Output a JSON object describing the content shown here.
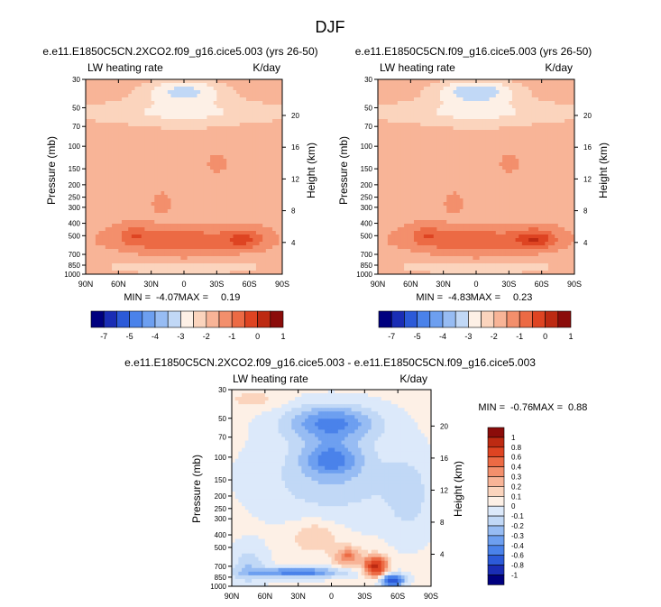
{
  "figure_title": "DJF",
  "colors": {
    "main_levels": [
      "#00007f",
      "#1a2db5",
      "#2c5ad8",
      "#4a82ea",
      "#6d9ff0",
      "#97bcf3",
      "#c1d8f6",
      "#fdf0e6",
      "#fbd4bd",
      "#f8b497",
      "#f38f6c",
      "#ec6a44",
      "#de4422",
      "#bd2a12",
      "#8b0c0a"
    ],
    "diff_levels": [
      "#00007f",
      "#1a2db5",
      "#2c5ad8",
      "#4a82ea",
      "#6d9ff0",
      "#97bcf3",
      "#c1d8f6",
      "#dce9fa",
      "#fdf0e6",
      "#fbd4bd",
      "#f8b497",
      "#f38f6c",
      "#ec6a44",
      "#de4422",
      "#bd2a12",
      "#8b0c0a"
    ]
  },
  "chart_data": [
    {
      "type": "heatmap",
      "title": "e.e11.E1850C5CN.2XCO2.f09_g16.cice5.003 (yrs 26-50)",
      "left_label": "LW heating rate",
      "right_label": "K/day",
      "ylabel": "Pressure (mb)",
      "ylabel_right": "Height (km)",
      "x_ticks": [
        "90N",
        "60N",
        "30N",
        "0",
        "30S",
        "60S",
        "90S"
      ],
      "x_values": [
        90,
        60,
        30,
        0,
        -30,
        -60,
        -90
      ],
      "y_ticks": [
        "30",
        "50",
        "70",
        "100",
        "150",
        "200",
        "250",
        "300",
        "400",
        "500",
        "700",
        "850",
        "1000"
      ],
      "y_values": [
        30,
        50,
        70,
        100,
        150,
        200,
        250,
        300,
        400,
        500,
        700,
        850,
        1000
      ],
      "height_ticks": [
        "20",
        "16",
        "12",
        "8",
        "4"
      ],
      "height_values": [
        20,
        16,
        12,
        8,
        4
      ],
      "min_label": "MIN =",
      "min_value": "-4.07",
      "max_label": "MAX =",
      "max_value": "0.19",
      "variant": 0
    },
    {
      "type": "heatmap",
      "title": "e.e11.E1850C5CN.f09_g16.cice5.003 (yrs 26-50)",
      "left_label": "LW heating rate",
      "right_label": "K/day",
      "ylabel": "Pressure (mb)",
      "ylabel_right": "Height (km)",
      "x_ticks": [
        "90N",
        "60N",
        "30N",
        "0",
        "30S",
        "60S",
        "90S"
      ],
      "x_values": [
        90,
        60,
        30,
        0,
        -30,
        -60,
        -90
      ],
      "y_ticks": [
        "30",
        "50",
        "70",
        "100",
        "150",
        "200",
        "250",
        "300",
        "400",
        "500",
        "700",
        "850",
        "1000"
      ],
      "y_values": [
        30,
        50,
        70,
        100,
        150,
        200,
        250,
        300,
        400,
        500,
        700,
        850,
        1000
      ],
      "height_ticks": [
        "20",
        "16",
        "12",
        "8",
        "4"
      ],
      "height_values": [
        20,
        16,
        12,
        8,
        4
      ],
      "min_label": "MIN =",
      "min_value": "-4.83",
      "max_label": "MAX =",
      "max_value": "0.23",
      "variant": 1
    },
    {
      "type": "heatmap",
      "title": "e.e11.E1850C5CN.2XCO2.f09_g16.cice5.003 - e.e11.E1850C5CN.f09_g16.cice5.003",
      "left_label": "LW heating rate",
      "right_label": "K/day",
      "ylabel": "Pressure (mb)",
      "ylabel_right": "Height (km)",
      "x_ticks": [
        "90N",
        "60N",
        "30N",
        "0",
        "30S",
        "60S",
        "90S"
      ],
      "x_values": [
        90,
        60,
        30,
        0,
        -30,
        -60,
        -90
      ],
      "y_ticks": [
        "30",
        "50",
        "70",
        "100",
        "150",
        "200",
        "250",
        "300",
        "400",
        "500",
        "700",
        "850",
        "1000"
      ],
      "y_values": [
        30,
        50,
        70,
        100,
        150,
        200,
        250,
        300,
        400,
        500,
        700,
        850,
        1000
      ],
      "height_ticks": [
        "20",
        "16",
        "12",
        "8",
        "4"
      ],
      "height_values": [
        20,
        16,
        12,
        8,
        4
      ],
      "min_label": "MIN =",
      "min_value": "-0.76",
      "max_label": "MAX =",
      "max_value": "0.88",
      "variant": 2
    }
  ],
  "colorbar_main": {
    "labels": [
      "-7",
      "-5",
      "-4",
      "-3",
      "-2",
      "-1",
      "0",
      "1"
    ],
    "label_box_index": [
      1,
      3,
      5,
      7,
      9,
      11,
      13,
      15
    ]
  },
  "colorbar_diff": {
    "labels": [
      "1",
      "0.8",
      "0.6",
      "0.4",
      "0.3",
      "0.2",
      "0.1",
      "0",
      "-0.1",
      "-0.2",
      "-0.3",
      "-0.4",
      "-0.6",
      "-0.8",
      "-1"
    ]
  }
}
